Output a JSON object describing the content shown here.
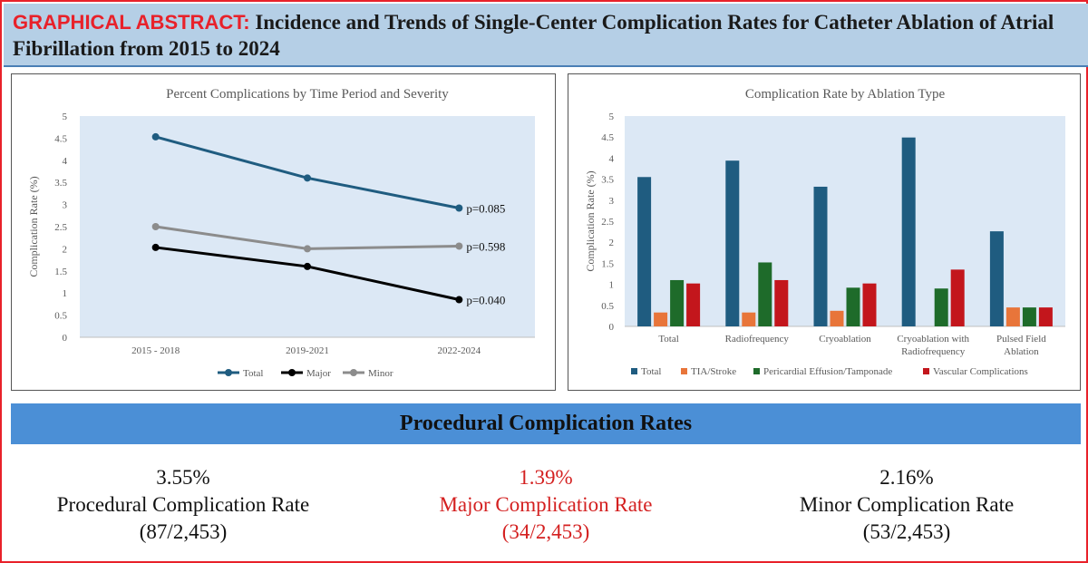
{
  "header": {
    "tag": "GRAPHICAL ABSTRACT:",
    "title": "Incidence and Trends of Single-Center Complication Rates for Catheter Ablation of Atrial Fibrillation from 2015 to 2024"
  },
  "colors": {
    "accent_red": "#e8212a",
    "header_bg": "#b5cfe6",
    "band_bg": "#4b8fd6"
  },
  "chart_data": [
    {
      "type": "line",
      "title": "Percent Complications by Time Period and Severity",
      "xlabel": "",
      "ylabel": "Complication Rate (%)",
      "ylim": [
        0,
        5
      ],
      "yticks": [
        "0",
        "0.5",
        "1",
        "1.5",
        "2",
        "2.5",
        "3",
        "3.5",
        "4",
        "4.5",
        "5"
      ],
      "categories": [
        "2015 - 2018",
        "2019-2021",
        "2022-2024"
      ],
      "series": [
        {
          "name": "Total",
          "color": "#1f5c80",
          "values": [
            4.53,
            3.6,
            2.92
          ],
          "pvalue": "p=0.085"
        },
        {
          "name": "Major",
          "color": "#000000",
          "values": [
            2.03,
            1.6,
            0.85
          ],
          "pvalue": "p=0.040"
        },
        {
          "name": "Minor",
          "color": "#8c8c8c",
          "values": [
            2.5,
            2.0,
            2.06
          ],
          "pvalue": "p=0.598"
        }
      ],
      "grid": false,
      "legend": "bottom"
    },
    {
      "type": "bar",
      "title": "Complication Rate by Ablation Type",
      "xlabel": "",
      "ylabel": "Complication Rate (%)",
      "ylim": [
        0,
        5
      ],
      "yticks": [
        "0",
        "0.5",
        "1",
        "1.5",
        "2",
        "2.5",
        "3",
        "3.5",
        "4",
        "4.5",
        "5"
      ],
      "categories": [
        "Total",
        "Radiofrequency",
        "Cryoablation",
        "Cryoablation with Radiofrequency",
        "Pulsed Field Ablation"
      ],
      "category_lines": [
        [
          "Total"
        ],
        [
          "Radiofrequency"
        ],
        [
          "Cryoablation"
        ],
        [
          "Cryoablation with",
          "Radiofrequency"
        ],
        [
          "Pulsed Field",
          "Ablation"
        ]
      ],
      "series": [
        {
          "name": "Total",
          "color": "#1f5c80",
          "values": [
            3.55,
            3.94,
            3.32,
            4.49,
            2.26
          ]
        },
        {
          "name": "TIA/Stroke",
          "color": "#e8753a",
          "values": [
            0.33,
            0.33,
            0.37,
            0,
            0.45
          ]
        },
        {
          "name": "Pericardial Effusion/Tamponade",
          "color": "#1e6b2a",
          "values": [
            1.1,
            1.52,
            0.92,
            0.9,
            0.45
          ]
        },
        {
          "name": "Vascular Complications",
          "color": "#c3161c",
          "values": [
            1.02,
            1.1,
            1.02,
            1.35,
            0.45
          ]
        }
      ],
      "grid": false,
      "legend": "bottom"
    }
  ],
  "summary": {
    "heading": "Procedural Complication Rates",
    "stats": [
      {
        "value": "3.55%",
        "label": "Procedural Complication Rate",
        "fraction": "(87/2,453)"
      },
      {
        "value": "1.39%",
        "label": "Major Complication Rate",
        "fraction": "(34/2,453)"
      },
      {
        "value": "2.16%",
        "label": "Minor Complication Rate",
        "fraction": "(53/2,453)"
      }
    ]
  }
}
